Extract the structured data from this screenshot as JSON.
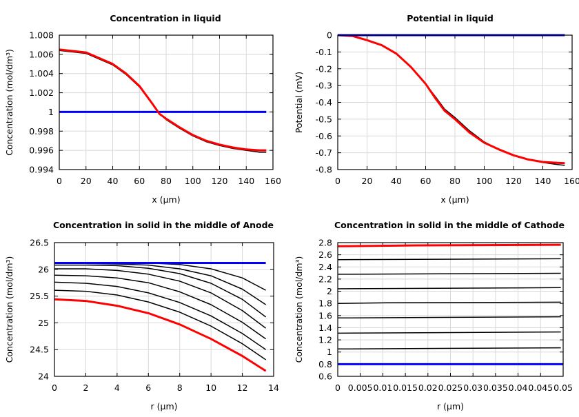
{
  "chart_data": [
    {
      "type": "line",
      "title": "Concentration in liquid",
      "xlabel": "x (µm)",
      "ylabel": "Concentration (mol/dm³)",
      "xlim": [
        0,
        160
      ],
      "ylim": [
        0.994,
        1.008
      ],
      "xticks": [
        0,
        20,
        40,
        60,
        80,
        100,
        120,
        140,
        160
      ],
      "xtick_labels": [
        "0",
        "20",
        "40",
        "60",
        "80",
        "100",
        "120",
        "140",
        "160"
      ],
      "yticks": [
        0.994,
        0.996,
        0.998,
        1,
        1.002,
        1.004,
        1.006,
        1.008
      ],
      "ytick_labels": [
        "0.994",
        "0.996",
        "0.998",
        "1",
        "1.002",
        "1.004",
        "1.006",
        "1.008"
      ],
      "grid": true,
      "series": [
        {
          "color": "#0000ff",
          "x": [
            0,
            155
          ],
          "y": [
            1.0,
            1.0
          ]
        },
        {
          "color": "#000000",
          "x": [
            0,
            20,
            40,
            50,
            60,
            70,
            75,
            80,
            90,
            100,
            110,
            120,
            130,
            140,
            150,
            155
          ],
          "y": [
            1.0064,
            1.0061,
            1.0049,
            1.0039,
            1.0026,
            1.0008,
            0.9998,
            0.9992,
            0.9983,
            0.9975,
            0.9969,
            0.9965,
            0.9962,
            0.996,
            0.9958,
            0.9958
          ]
        },
        {
          "color": "#ff0000",
          "x": [
            0,
            20,
            40,
            50,
            60,
            70,
            75,
            80,
            90,
            100,
            110,
            120,
            130,
            140,
            150,
            155
          ],
          "y": [
            1.0065,
            1.0062,
            1.005,
            1.004,
            1.0027,
            1.0008,
            0.9998,
            0.9993,
            0.9984,
            0.9976,
            0.997,
            0.9966,
            0.9963,
            0.9961,
            0.996,
            0.996
          ]
        }
      ]
    },
    {
      "type": "line",
      "title": "Potential in liquid",
      "xlabel": "x (µm)",
      "ylabel": "Potential (mV)",
      "xlim": [
        0,
        160
      ],
      "ylim": [
        -0.8,
        0
      ],
      "xticks": [
        0,
        20,
        40,
        60,
        80,
        100,
        120,
        140,
        160
      ],
      "xtick_labels": [
        "0",
        "20",
        "40",
        "60",
        "80",
        "100",
        "120",
        "140",
        "160"
      ],
      "yticks": [
        -0.8,
        -0.7,
        -0.6,
        -0.5,
        -0.4,
        -0.3,
        -0.2,
        -0.1,
        0
      ],
      "ytick_labels": [
        "-0.8",
        "-0.7",
        "-0.6",
        "-0.5",
        "-0.4",
        "-0.3",
        "-0.2",
        "-0.1",
        "0"
      ],
      "grid": true,
      "series": [
        {
          "color": "#000000",
          "x": [
            0,
            10,
            20,
            30,
            40,
            50,
            60,
            67,
            73,
            80,
            90,
            100,
            110,
            120,
            130,
            140,
            150,
            155
          ],
          "y": [
            0,
            -0.005,
            -0.03,
            -0.06,
            -0.11,
            -0.19,
            -0.29,
            -0.37,
            -0.44,
            -0.49,
            -0.57,
            -0.635,
            -0.68,
            -0.715,
            -0.74,
            -0.758,
            -0.77,
            -0.775
          ]
        },
        {
          "color": "#ff0000",
          "x": [
            0,
            10,
            20,
            30,
            40,
            50,
            60,
            67,
            73,
            80,
            90,
            100,
            110,
            120,
            130,
            140,
            150,
            155
          ],
          "y": [
            0,
            -0.005,
            -0.03,
            -0.06,
            -0.11,
            -0.19,
            -0.29,
            -0.38,
            -0.45,
            -0.5,
            -0.58,
            -0.64,
            -0.68,
            -0.715,
            -0.74,
            -0.755,
            -0.76,
            -0.762
          ]
        },
        {
          "color": "#0000ff",
          "x": [
            0,
            155
          ],
          "y": [
            0,
            0
          ]
        }
      ]
    },
    {
      "type": "line",
      "title": "Concentration in solid in the middle of Anode",
      "xlabel": "r (µm)",
      "ylabel": "Concentration (mol/dm³)",
      "xlim": [
        0,
        14
      ],
      "ylim": [
        24,
        26.5
      ],
      "xticks": [
        0,
        2,
        4,
        6,
        8,
        10,
        12,
        14
      ],
      "xtick_labels": [
        "0",
        "2",
        "4",
        "6",
        "8",
        "10",
        "12",
        "14"
      ],
      "yticks": [
        24,
        24.5,
        25,
        25.5,
        26,
        26.5
      ],
      "ytick_labels": [
        "24",
        "24.5",
        "25",
        "25.5",
        "26",
        "26.5"
      ],
      "grid": true,
      "series": [
        {
          "color": "#000000",
          "x": [
            0,
            2,
            4,
            6,
            8,
            10,
            12,
            13.5
          ],
          "y": [
            26.13,
            26.13,
            26.13,
            26.12,
            26.09,
            26.01,
            25.84,
            25.61
          ]
        },
        {
          "color": "#000000",
          "x": [
            0,
            2,
            4,
            6,
            8,
            10,
            12,
            13.5
          ],
          "y": [
            26.11,
            26.11,
            26.1,
            26.08,
            26.01,
            25.88,
            25.63,
            25.34
          ]
        },
        {
          "color": "#000000",
          "x": [
            0,
            2,
            4,
            6,
            8,
            10,
            12,
            13.5
          ],
          "y": [
            26.08,
            26.08,
            26.07,
            26.02,
            25.92,
            25.74,
            25.44,
            25.11
          ]
        },
        {
          "color": "#000000",
          "x": [
            0,
            2,
            4,
            6,
            8,
            10,
            12,
            13.5
          ],
          "y": [
            26.01,
            26.01,
            25.98,
            25.91,
            25.78,
            25.56,
            25.23,
            24.9
          ]
        },
        {
          "color": "#000000",
          "x": [
            0,
            2,
            4,
            6,
            8,
            10,
            12,
            13.5
          ],
          "y": [
            25.89,
            25.88,
            25.84,
            25.75,
            25.58,
            25.34,
            25.01,
            24.7
          ]
        },
        {
          "color": "#000000",
          "x": [
            0,
            2,
            4,
            6,
            8,
            10,
            12,
            13.5
          ],
          "y": [
            25.76,
            25.74,
            25.68,
            25.56,
            25.38,
            25.13,
            24.8,
            24.5
          ]
        },
        {
          "color": "#000000",
          "x": [
            0,
            2,
            4,
            6,
            8,
            10,
            12,
            13.5
          ],
          "y": [
            25.61,
            25.59,
            25.52,
            25.39,
            25.2,
            24.94,
            24.61,
            24.31
          ]
        },
        {
          "color": "#ff0000",
          "x": [
            0,
            2,
            4,
            6,
            8,
            10,
            12,
            13.5
          ],
          "y": [
            25.44,
            25.41,
            25.32,
            25.18,
            24.97,
            24.7,
            24.38,
            24.1
          ]
        },
        {
          "color": "#0000ff",
          "x": [
            0,
            13.5
          ],
          "y": [
            26.12,
            26.12
          ]
        }
      ]
    },
    {
      "type": "line",
      "title": "Concentration in solid in the middle of Cathode",
      "xlabel": "r (µm)",
      "ylabel": "Concentration (mol/dm³)",
      "xlim": [
        0,
        0.05
      ],
      "ylim": [
        0.6,
        2.8
      ],
      "xticks": [
        0,
        0.005,
        0.01,
        0.015,
        0.02,
        0.025,
        0.03,
        0.035,
        0.04,
        0.045,
        0.05
      ],
      "xtick_labels": [
        "0",
        "0.005",
        "0.01",
        "0.015",
        "0.02",
        "0.025",
        "0.03",
        "0.035",
        "0.04",
        "0.045",
        "0.05"
      ],
      "yticks": [
        0.6,
        0.8,
        1,
        1.2,
        1.4,
        1.6,
        1.8,
        2,
        2.2,
        2.4,
        2.6,
        2.8
      ],
      "ytick_labels": [
        "0.6",
        "0.8",
        "1",
        "1.2",
        "1.4",
        "1.6",
        "1.8",
        "2",
        "2.2",
        "2.4",
        "2.6",
        "2.8"
      ],
      "grid": true,
      "series": [
        {
          "color": "#000000",
          "x": [
            0,
            0.0495
          ],
          "y": [
            2.52,
            2.535
          ]
        },
        {
          "color": "#000000",
          "x": [
            0,
            0.0495
          ],
          "y": [
            2.28,
            2.295
          ]
        },
        {
          "color": "#000000",
          "x": [
            0,
            0.0495
          ],
          "y": [
            2.04,
            2.06
          ]
        },
        {
          "color": "#000000",
          "x": [
            0,
            0.011,
            0.0495
          ],
          "y": [
            1.8,
            1.81,
            1.82
          ]
        },
        {
          "color": "#000000",
          "x": [
            0,
            0.0495
          ],
          "y": [
            1.56,
            1.58
          ]
        },
        {
          "color": "#000000",
          "x": [
            0,
            0.0495
          ],
          "y": [
            1.31,
            1.33
          ]
        },
        {
          "color": "#000000",
          "x": [
            0,
            0.0495
          ],
          "y": [
            1.05,
            1.07
          ]
        },
        {
          "color": "#ff0000",
          "x": [
            0,
            0.018,
            0.0495
          ],
          "y": [
            2.74,
            2.755,
            2.765
          ]
        },
        {
          "color": "#0000ff",
          "x": [
            0,
            0.05
          ],
          "y": [
            0.8,
            0.8
          ]
        }
      ]
    }
  ]
}
